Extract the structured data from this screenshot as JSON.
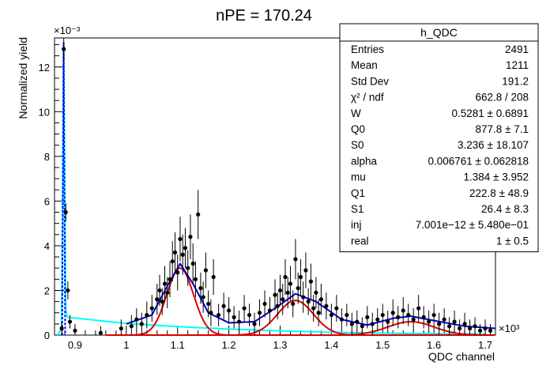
{
  "chart_data": {
    "type": "scatter",
    "title": "nPE = 170.24",
    "xlabel": "QDC channel",
    "ylabel": "Normalized yield",
    "x_exponent": "×10³",
    "y_exponent": "×10⁻³",
    "xlim": [
      0.86,
      1.72
    ],
    "ylim": [
      0,
      13.3
    ],
    "x_ticks": [
      "0.9",
      "1",
      "1.1",
      "1.2",
      "1.3",
      "1.4",
      "1.5",
      "1.6",
      "1.7"
    ],
    "y_ticks": [
      "0",
      "2",
      "4",
      "6",
      "8",
      "10",
      "12"
    ],
    "stats_box": {
      "title": "h_QDC",
      "rows": [
        {
          "label": "Entries",
          "value": "2491"
        },
        {
          "label": "Mean",
          "value": "1211"
        },
        {
          "label": "Std Dev",
          "value": "191.2"
        },
        {
          "label": "χ² / ndf",
          "value": "662.8 / 208"
        },
        {
          "label": "W",
          "value": "0.5281 ± 0.6891"
        },
        {
          "label": "Q0",
          "value": "877.8 ± 7.1"
        },
        {
          "label": "S0",
          "value": "3.236 ± 18.107"
        },
        {
          "label": "alpha",
          "value": "0.006761 ± 0.062818"
        },
        {
          "label": "mu",
          "value": "1.384 ± 3.952"
        },
        {
          "label": "Q1",
          "value": "222.8 ± 48.9"
        },
        {
          "label": "S1",
          "value": "26.4 ± 8.3"
        },
        {
          "label": "inj",
          "value": "7.001e−12 ± 5.480e−01"
        },
        {
          "label": "real",
          "value": "1 ± 0.5"
        }
      ]
    },
    "colors": {
      "data": "#000000",
      "total_fit": "#0000cc",
      "pe_peaks": "#dd0000",
      "background": "#00ffff",
      "pedestal": "#0000ff"
    },
    "fit_components": {
      "pedestal_peak_x": 0.8778,
      "pedestal_peak_y": 13.1,
      "background_tail": [
        [
          0.885,
          0.8
        ],
        [
          1.0,
          0.52
        ],
        [
          1.1,
          0.38
        ],
        [
          1.2,
          0.27
        ],
        [
          1.3,
          0.19
        ],
        [
          1.4,
          0.13
        ],
        [
          1.5,
          0.09
        ],
        [
          1.6,
          0.06
        ],
        [
          1.7,
          0.04
        ]
      ],
      "pe_peaks": [
        {
          "mean": 1.105,
          "sigma": 0.026,
          "amp": 3.0
        },
        {
          "mean": 1.33,
          "sigma": 0.035,
          "amp": 1.55
        },
        {
          "mean": 1.555,
          "sigma": 0.045,
          "amp": 0.6
        }
      ],
      "total_fit": [
        [
          1.0,
          0.5
        ],
        [
          1.05,
          0.9
        ],
        [
          1.08,
          2.2
        ],
        [
          1.105,
          3.2
        ],
        [
          1.13,
          2.3
        ],
        [
          1.16,
          1.0
        ],
        [
          1.2,
          0.55
        ],
        [
          1.25,
          0.6
        ],
        [
          1.29,
          1.2
        ],
        [
          1.33,
          1.85
        ],
        [
          1.37,
          1.5
        ],
        [
          1.42,
          0.7
        ],
        [
          1.47,
          0.45
        ],
        [
          1.52,
          0.75
        ],
        [
          1.555,
          0.85
        ],
        [
          1.6,
          0.65
        ],
        [
          1.66,
          0.4
        ],
        [
          1.72,
          0.3
        ]
      ]
    },
    "points": [
      [
        0.874,
        0.3,
        0.3
      ],
      [
        0.878,
        12.8,
        0.5
      ],
      [
        0.882,
        5.5,
        0.4
      ],
      [
        0.886,
        2.0,
        0.4
      ],
      [
        0.89,
        0.6,
        0.3
      ],
      [
        0.9,
        0.2,
        0.3
      ],
      [
        0.95,
        0.1,
        0.3
      ],
      [
        0.99,
        0.3,
        0.4
      ],
      [
        1.01,
        0.4,
        0.5
      ],
      [
        1.02,
        0.7,
        0.5
      ],
      [
        1.03,
        0.5,
        0.5
      ],
      [
        1.04,
        0.9,
        0.6
      ],
      [
        1.05,
        1.2,
        0.6
      ],
      [
        1.06,
        1.6,
        0.7
      ],
      [
        1.065,
        2.0,
        0.7
      ],
      [
        1.07,
        1.5,
        0.6
      ],
      [
        1.075,
        2.3,
        0.8
      ],
      [
        1.08,
        1.9,
        0.7
      ],
      [
        1.085,
        2.5,
        0.8
      ],
      [
        1.09,
        3.3,
        0.9
      ],
      [
        1.095,
        3.7,
        0.9
      ],
      [
        1.1,
        2.8,
        0.8
      ],
      [
        1.105,
        4.3,
        1.0
      ],
      [
        1.11,
        3.6,
        0.9
      ],
      [
        1.115,
        3.9,
        0.9
      ],
      [
        1.12,
        3.0,
        0.8
      ],
      [
        1.125,
        4.4,
        1.0
      ],
      [
        1.13,
        3.2,
        0.9
      ],
      [
        1.135,
        2.5,
        0.8
      ],
      [
        1.14,
        5.4,
        1.1
      ],
      [
        1.145,
        2.1,
        0.7
      ],
      [
        1.15,
        1.7,
        0.7
      ],
      [
        1.155,
        2.9,
        0.8
      ],
      [
        1.16,
        1.4,
        0.6
      ],
      [
        1.165,
        1.0,
        0.6
      ],
      [
        1.17,
        2.6,
        0.8
      ],
      [
        1.18,
        0.9,
        0.5
      ],
      [
        1.19,
        1.3,
        0.6
      ],
      [
        1.2,
        1.1,
        0.6
      ],
      [
        1.21,
        0.8,
        0.5
      ],
      [
        1.22,
        0.6,
        0.5
      ],
      [
        1.23,
        1.2,
        0.6
      ],
      [
        1.24,
        0.9,
        0.5
      ],
      [
        1.25,
        0.5,
        0.5
      ],
      [
        1.26,
        1.0,
        0.6
      ],
      [
        1.27,
        1.4,
        0.6
      ],
      [
        1.28,
        1.1,
        0.6
      ],
      [
        1.29,
        1.8,
        0.7
      ],
      [
        1.295,
        1.3,
        0.6
      ],
      [
        1.3,
        2.0,
        0.7
      ],
      [
        1.305,
        1.6,
        0.7
      ],
      [
        1.31,
        2.6,
        0.8
      ],
      [
        1.315,
        1.9,
        0.7
      ],
      [
        1.32,
        2.3,
        0.8
      ],
      [
        1.325,
        1.4,
        0.6
      ],
      [
        1.33,
        3.4,
        0.9
      ],
      [
        1.335,
        2.1,
        0.7
      ],
      [
        1.34,
        2.6,
        0.8
      ],
      [
        1.345,
        1.7,
        0.7
      ],
      [
        1.35,
        2.9,
        0.8
      ],
      [
        1.355,
        1.5,
        0.6
      ],
      [
        1.36,
        2.4,
        0.8
      ],
      [
        1.365,
        1.2,
        0.6
      ],
      [
        1.37,
        1.9,
        0.7
      ],
      [
        1.375,
        1.0,
        0.6
      ],
      [
        1.38,
        1.6,
        0.7
      ],
      [
        1.39,
        1.3,
        0.6
      ],
      [
        1.4,
        0.9,
        0.5
      ],
      [
        1.41,
        1.2,
        0.6
      ],
      [
        1.42,
        0.7,
        0.5
      ],
      [
        1.43,
        0.9,
        0.5
      ],
      [
        1.44,
        0.5,
        0.5
      ],
      [
        1.45,
        0.6,
        0.5
      ],
      [
        1.46,
        0.4,
        0.4
      ],
      [
        1.47,
        0.8,
        0.5
      ],
      [
        1.48,
        0.5,
        0.5
      ],
      [
        1.49,
        0.7,
        0.5
      ],
      [
        1.5,
        0.9,
        0.5
      ],
      [
        1.51,
        0.6,
        0.5
      ],
      [
        1.52,
        1.0,
        0.6
      ],
      [
        1.53,
        0.8,
        0.5
      ],
      [
        1.54,
        1.1,
        0.6
      ],
      [
        1.55,
        0.9,
        0.5
      ],
      [
        1.56,
        0.7,
        0.5
      ],
      [
        1.57,
        1.2,
        0.6
      ],
      [
        1.58,
        0.8,
        0.5
      ],
      [
        1.59,
        0.6,
        0.5
      ],
      [
        1.6,
        0.9,
        0.5
      ],
      [
        1.61,
        0.5,
        0.5
      ],
      [
        1.62,
        0.7,
        0.5
      ],
      [
        1.63,
        0.4,
        0.4
      ],
      [
        1.64,
        0.6,
        0.5
      ],
      [
        1.65,
        0.3,
        0.4
      ],
      [
        1.66,
        0.5,
        0.5
      ],
      [
        1.67,
        0.3,
        0.4
      ],
      [
        1.68,
        0.4,
        0.4
      ],
      [
        1.69,
        0.2,
        0.3
      ],
      [
        1.7,
        0.3,
        0.4
      ],
      [
        1.71,
        0.2,
        0.3
      ]
    ]
  }
}
